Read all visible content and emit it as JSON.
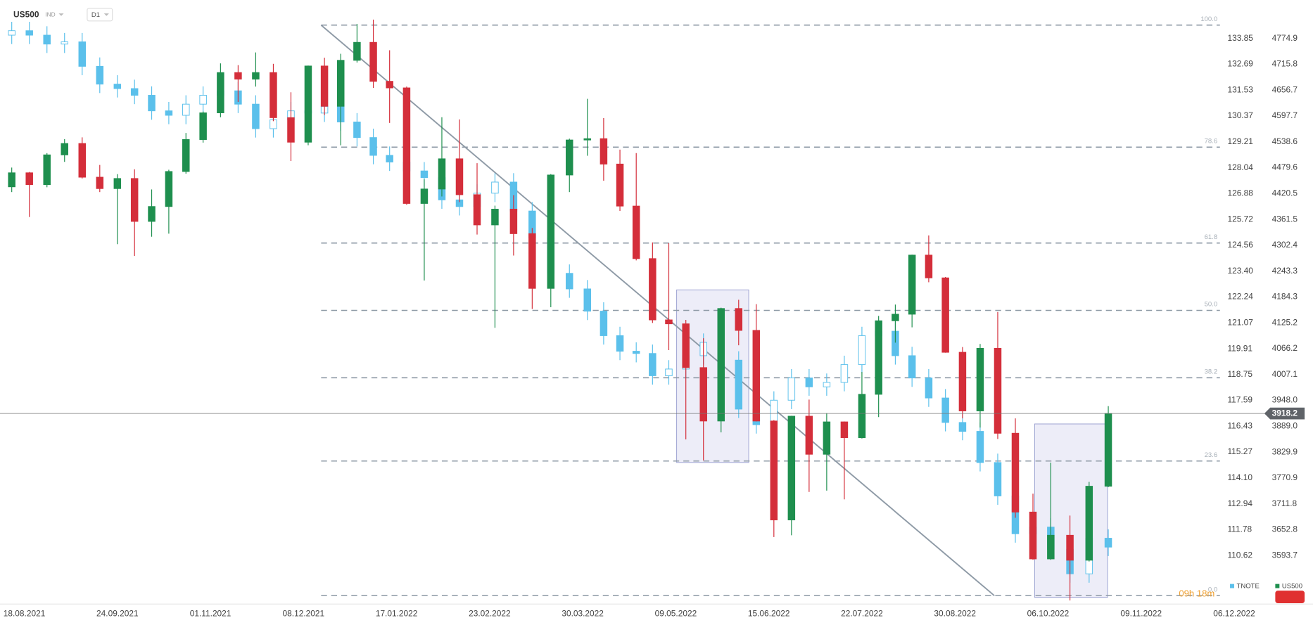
{
  "chart_data": {
    "type": "candlestick",
    "title": "US500",
    "market": "IND",
    "interval": "D1",
    "countdown": "09h 18m",
    "last_price": 3918.2,
    "categories": [
      "18.08.2021",
      "24.09.2021",
      "01.11.2021",
      "08.12.2021",
      "17.01.2022",
      "23.02.2022",
      "30.03.2022",
      "09.05.2022",
      "15.06.2022",
      "22.07.2022",
      "30.08.2022",
      "06.10.2022",
      "09.11.2022",
      "06.12.2022"
    ],
    "x": [
      "13.08.2021",
      "20.08.2021",
      "27.08.2021",
      "03.09.2021",
      "10.09.2021",
      "17.09.2021",
      "24.09.2021",
      "01.10.2021",
      "08.10.2021",
      "15.10.2021",
      "22.10.2021",
      "29.10.2021",
      "05.11.2021",
      "12.11.2021",
      "19.11.2021",
      "26.11.2021",
      "03.12.2021",
      "10.12.2021",
      "17.12.2021",
      "24.12.2021",
      "31.12.2021",
      "07.01.2022",
      "14.01.2022",
      "21.01.2022",
      "28.01.2022",
      "04.02.2022",
      "11.02.2022",
      "18.02.2022",
      "25.02.2022",
      "04.03.2022",
      "11.03.2022",
      "18.03.2022",
      "25.03.2022",
      "01.04.2022",
      "08.04.2022",
      "15.04.2022",
      "22.04.2022",
      "29.04.2022",
      "06.05.2022",
      "13.05.2022",
      "20.05.2022",
      "27.05.2022",
      "03.06.2022",
      "10.06.2022",
      "17.06.2022",
      "24.06.2022",
      "01.07.2022",
      "08.07.2022",
      "15.07.2022",
      "22.07.2022",
      "29.07.2022",
      "05.08.2022",
      "12.08.2022",
      "19.08.2022",
      "26.08.2022",
      "02.09.2022",
      "09.09.2022",
      "16.09.2022",
      "23.09.2022",
      "30.09.2022",
      "07.10.2022",
      "14.10.2022",
      "21.10.2022",
      "28.10.2022"
    ],
    "ylim": [
      3492.4,
      4862.8
    ],
    "yticks": [
      4774.9,
      4715.8,
      4656.7,
      4597.7,
      4538.6,
      4479.6,
      4420.5,
      4361.5,
      4302.4,
      4243.3,
      4184.3,
      4125.2,
      4066.2,
      4007.1,
      {
        "value": 3948,
        "label": "3948.0"
      },
      {
        "value": 3889,
        "label": "3889.0"
      },
      3829.9,
      3770.9,
      3711.8,
      3652.8,
      3593.7
    ],
    "y2lim": [
      108.63,
      135.58
    ],
    "y2ticks": [
      133.85,
      132.69,
      131.53,
      130.37,
      129.21,
      128.04,
      126.88,
      125.72,
      124.56,
      {
        "value": 123.4,
        "label": "123.40"
      },
      122.24,
      121.07,
      119.91,
      118.75,
      117.59,
      116.43,
      115.27,
      {
        "value": 114.1,
        "label": "114.10"
      },
      112.94,
      111.78,
      110.62
    ],
    "fib_levels": [
      {
        "label": "100.0",
        "value": 4805.5
      },
      {
        "label": "78.6",
        "value": 4526.6
      },
      {
        "label": "61.8",
        "value": 4307.6
      },
      {
        "label": "50.0",
        "value": 4153.7
      },
      {
        "label": "38.2",
        "value": 3999.8
      },
      {
        "label": "23.6",
        "value": 3809.6
      },
      {
        "label": "0.0",
        "value": 3502
      }
    ],
    "series": [
      {
        "name": "TNOTE",
        "axis": "y2",
        "color": "#5bc0eb",
        "open": [
          134.0,
          134.2,
          134.0,
          133.6,
          133.7,
          132.6,
          131.8,
          131.6,
          131.3,
          130.6,
          130.4,
          130.9,
          131.3,
          131.5,
          130.9,
          129.8,
          130.2,
          130.6,
          130.5,
          130.8,
          130.1,
          129.4,
          128.6,
          128.3,
          127.9,
          127.6,
          126.6,
          126.3,
          126.9,
          127.4,
          126.1,
          124.9,
          123.3,
          122.6,
          121.6,
          120.5,
          119.8,
          119.7,
          118.7,
          119.0,
          119.6,
          120.2,
          119.4,
          117.2,
          116.5,
          117.6,
          118.6,
          118.2,
          118.4,
          119.2,
          120.5,
          120.7,
          119.6,
          118.6,
          117.7,
          116.6,
          116.2,
          114.8,
          113.3,
          111.6,
          111.9,
          110.9,
          109.8,
          111.4
        ],
        "high": [
          134.6,
          134.6,
          134.4,
          134.1,
          134.1,
          133.0,
          132.2,
          132.0,
          131.7,
          131.0,
          131.3,
          131.7,
          131.9,
          131.9,
          131.3,
          130.6,
          131.0,
          131.0,
          131.2,
          131.2,
          130.5,
          129.8,
          129.0,
          128.7,
          128.3,
          128.0,
          127.0,
          127.3,
          127.8,
          127.8,
          126.5,
          125.3,
          123.7,
          123.0,
          122.0,
          120.9,
          120.2,
          120.1,
          119.4,
          120.0,
          120.6,
          120.6,
          119.8,
          117.6,
          118.0,
          119.0,
          119.0,
          118.8,
          119.6,
          120.9,
          121.1,
          121.1,
          120.0,
          119.0,
          118.1,
          117.0,
          116.6,
          115.2,
          113.7,
          112.3,
          112.3,
          111.3,
          111.8,
          111.8
        ],
        "low": [
          133.6,
          133.6,
          133.2,
          133.2,
          132.2,
          131.4,
          131.2,
          130.9,
          130.2,
          130.0,
          130.0,
          130.5,
          130.9,
          130.5,
          129.4,
          129.4,
          129.8,
          130.1,
          130.1,
          129.7,
          129.0,
          128.2,
          127.9,
          127.5,
          127.2,
          126.2,
          125.9,
          125.9,
          126.5,
          125.7,
          124.5,
          122.9,
          122.2,
          121.2,
          120.1,
          119.4,
          119.3,
          118.3,
          118.3,
          118.6,
          119.2,
          119.0,
          116.8,
          116.1,
          116.1,
          117.2,
          117.8,
          117.8,
          118.0,
          118.8,
          120.1,
          119.2,
          118.2,
          117.3,
          116.2,
          115.8,
          114.4,
          112.9,
          111.2,
          111.2,
          110.5,
          109.4,
          109.4,
          110.6
        ],
        "close": [
          134.2,
          134.0,
          133.6,
          133.7,
          132.6,
          131.8,
          131.6,
          131.3,
          130.6,
          130.4,
          130.9,
          131.3,
          131.5,
          130.9,
          129.8,
          130.2,
          130.6,
          130.5,
          130.8,
          130.1,
          129.4,
          128.6,
          128.3,
          127.9,
          127.6,
          126.6,
          126.3,
          126.9,
          127.4,
          126.1,
          124.9,
          123.3,
          122.6,
          121.6,
          120.5,
          119.8,
          119.7,
          118.7,
          119.0,
          119.6,
          120.2,
          119.4,
          117.2,
          116.5,
          117.6,
          118.6,
          118.2,
          118.4,
          119.2,
          120.5,
          120.7,
          119.6,
          118.6,
          117.7,
          116.6,
          116.2,
          114.8,
          113.3,
          111.6,
          111.9,
          110.9,
          109.8,
          111.4,
          111.0
        ]
      },
      {
        "name": "US500",
        "axis": "y",
        "color": "#1e8f4e",
        "down_color": "#d42e3a",
        "open": [
          4436,
          4468,
          4441,
          4509,
          4535,
          4458,
          4432,
          4455,
          4357,
          4391,
          4471,
          4544,
          4605,
          4697,
          4682,
          4697,
          4594,
          4538,
          4712,
          4620,
          4725,
          4766,
          4677,
          4662,
          4398,
          4431,
          4500,
          4418,
          4349,
          4385,
          4329,
          4204,
          4463,
          4543,
          4546,
          4488,
          4392,
          4272,
          4132,
          4123,
          4023,
          3901,
          4158,
          4108,
          3901,
          3675,
          3912,
          3825,
          3899,
          3863,
          3962,
          4130,
          4145,
          4280,
          4228,
          4058,
          3924,
          4067,
          3873,
          3693,
          3586,
          3640,
          3583,
          3752
        ],
        "high": [
          4480,
          4470,
          4513,
          4545,
          4549,
          4486,
          4465,
          4476,
          4430,
          4475,
          4559,
          4608,
          4718,
          4714,
          4743,
          4717,
          4652,
          4713,
          4731,
          4740,
          4808,
          4818,
          4748,
          4665,
          4453,
          4595,
          4590,
          4490,
          4393,
          4417,
          4342,
          4465,
          4546,
          4637,
          4593,
          4521,
          4513,
          4309,
          4307,
          4132,
          4090,
          4160,
          4178,
          4168,
          3903,
          3913,
          3950,
          3919,
          3900,
          4013,
          4141,
          4167,
          4281,
          4325,
          4230,
          4070,
          4077,
          4150,
          3907,
          3735,
          3806,
          3685,
          3762,
          3935
        ],
        "low": [
          4424,
          4367,
          4435,
          4493,
          4455,
          4424,
          4305,
          4278,
          4322,
          4329,
          4466,
          4537,
          4595,
          4630,
          4665,
          4586,
          4495,
          4531,
          4600,
          4531,
          4720,
          4662,
          4582,
          4395,
          4222,
          4414,
          4401,
          4327,
          4114,
          4279,
          4157,
          4161,
          4424,
          4507,
          4450,
          4381,
          4268,
          4125,
          4063,
          3859,
          3811,
          3875,
          4074,
          3900,
          3636,
          3640,
          3739,
          3742,
          3722,
          3861,
          3910,
          4080,
          4115,
          4218,
          4057,
          3907,
          3886,
          3860,
          3680,
          3584,
          3584,
          3491,
          3580,
          3750
        ],
        "close": [
          4468,
          4441,
          4509,
          4535,
          4458,
          4432,
          4455,
          4357,
          4391,
          4471,
          4544,
          4605,
          4697,
          4682,
          4697,
          4594,
          4538,
          4712,
          4620,
          4725,
          4766,
          4677,
          4662,
          4398,
          4431,
          4500,
          4418,
          4349,
          4385,
          4329,
          4204,
          4463,
          4543,
          4546,
          4488,
          4392,
          4272,
          4132,
          4123,
          4023,
          3901,
          4158,
          4108,
          3901,
          3675,
          3912,
          3825,
          3899,
          3863,
          3962,
          4130,
          4145,
          4280,
          4228,
          4058,
          3924,
          4067,
          3873,
          3693,
          3586,
          3640,
          3583,
          3752,
          3918
        ]
      }
    ]
  }
}
